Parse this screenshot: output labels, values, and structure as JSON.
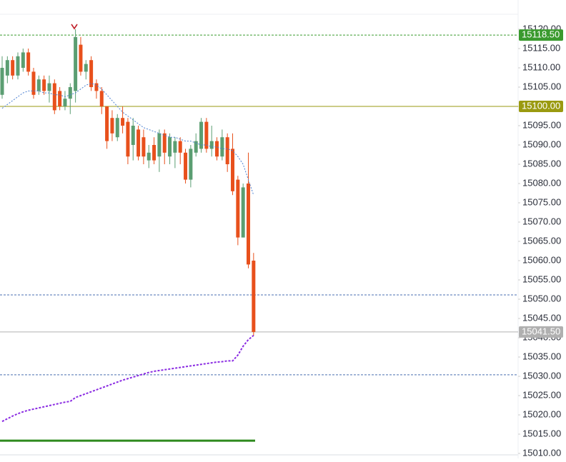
{
  "chart_data": {
    "type": "candlestick",
    "up_color": "#5b9e72",
    "down_color": "#e8501c",
    "open": [
      15103,
      15108,
      15112,
      15108,
      15110,
      15114,
      15109,
      15104,
      15107,
      15104,
      15106,
      15104,
      15100,
      15102,
      15104,
      15116,
      15109,
      15112,
      15106,
      15104,
      15100,
      15097,
      15092,
      15097,
      15096,
      15090,
      15094,
      15092,
      15086,
      15090,
      15087,
      15093,
      15087,
      15088,
      15091,
      15088,
      15081,
      15088,
      15089,
      15096,
      15089,
      15091,
      15087,
      15092,
      15089,
      15081,
      15066,
      15080,
      15060
    ],
    "high": [
      15113,
      15113,
      15113,
      15114,
      15115,
      15115,
      15110,
      15108,
      15108,
      15108,
      15107,
      15105,
      15104,
      15106,
      15120,
      15118,
      15112,
      15113,
      15107,
      15105,
      15100,
      15099,
      15098,
      15100,
      15097,
      15097,
      15095,
      15094,
      15090,
      15092,
      15094,
      15094,
      15093,
      15092,
      15092,
      15089,
      15090,
      15093,
      15097,
      15097,
      15095,
      15092,
      15094,
      15093,
      15093,
      15082,
      15080,
      15088,
      15062
    ],
    "low": [
      15102,
      15106,
      15107,
      15107,
      15109,
      15108,
      15102,
      15103,
      15103,
      15101,
      15098,
      15099,
      15099,
      15098,
      15101,
      15108,
      15107,
      15104,
      15102,
      15098,
      15089,
      15091,
      15091,
      15093,
      15085,
      15086,
      15086,
      15085,
      15084,
      15085,
      15083,
      15085,
      15085,
      15084,
      15085,
      15080,
      15079,
      15087,
      15088,
      15088,
      15087,
      15086,
      15086,
      15083,
      15077,
      15064,
      15066,
      15058,
      15040.5
    ],
    "close": [
      15110,
      15112,
      15108,
      15113,
      15114,
      15109,
      15103,
      15107,
      15104,
      15106,
      15099,
      15100,
      15102,
      15105,
      15118,
      15109,
      15111,
      15105,
      15104,
      15100,
      15091,
      15093,
      15097,
      15095,
      15087,
      15095,
      15087,
      15087,
      15088,
      15086,
      15093,
      15088,
      15092,
      15091,
      15088,
      15081,
      15089,
      15091,
      15096,
      15089,
      15091,
      15087,
      15092,
      15085,
      15078,
      15066,
      15079,
      15059,
      15041.5
    ],
    "series": [
      {
        "color": "#4a7fd0",
        "style": "dotted",
        "values": [
          15099.5,
          15100.5,
          15101.5,
          15102.5,
          15103.5,
          15104,
          15104,
          15104,
          15103.5,
          15103.5,
          15103,
          15103,
          15102.5,
          15103,
          15103.5,
          15104.5,
          15105.5,
          15106,
          15105.5,
          15104.5,
          15103,
          15101.5,
          15100,
          15098.5,
          15097.5,
          15096.5,
          15095.5,
          15094.5,
          15094,
          15093.5,
          15093,
          15092.5,
          15092,
          15092,
          15091.5,
          15091,
          15091,
          15090.5,
          15090,
          15090,
          15089.5,
          15089.5,
          15089,
          15089,
          15088.5,
          15087,
          15085,
          15081,
          15077
        ]
      },
      {
        "color": "#8a2be2",
        "style": "dashed",
        "values": [
          15018.3,
          15019,
          15019.7,
          15020.3,
          15020.8,
          15021.2,
          15021.5,
          15021.8,
          15022.1,
          15022.4,
          15022.7,
          15023,
          15023.3,
          15023.5,
          15024.5,
          15025,
          15025.5,
          15026,
          15026.5,
          15027,
          15027.5,
          15028,
          15028.5,
          15029,
          15029.4,
          15029.8,
          15030.2,
          15030.6,
          15031,
          15031.3,
          15031.5,
          15031.7,
          15031.9,
          15032.1,
          15032.3,
          15032.5,
          15032.7,
          15032.9,
          15033.1,
          15033.3,
          15033.5,
          15033.7,
          15033.8,
          15034,
          15034,
          15035.5,
          15037.8,
          15039.5,
          15040.6
        ]
      }
    ],
    "price_labels": [
      {
        "value": 15118.5,
        "label": "15118.50",
        "color": "#3a9a2e",
        "style": "dashed"
      },
      {
        "value": 15100,
        "label": "15100.00",
        "color": "#9a9a10",
        "style": "solid"
      },
      {
        "value": 15041.5,
        "label": "15041.50",
        "color": "#b0b0b0",
        "style": "solid"
      }
    ],
    "lines": [
      {
        "value": 15051.1,
        "color": "#4a6fb0",
        "style": "dashed"
      },
      {
        "value": 15030.4,
        "color": "#4a6fb0",
        "style": "dashed"
      },
      {
        "value": 15013.3,
        "color": "#2e8a1e",
        "style": "thick"
      }
    ],
    "ylim": [
      15010,
      15120
    ],
    "yticks": [
      {
        "value": 15010,
        "label": "15010.00"
      },
      {
        "value": 15015,
        "label": "15015.00"
      },
      {
        "value": 15020,
        "label": "15020.00"
      },
      {
        "value": 15025,
        "label": "15025.00"
      },
      {
        "value": 15030,
        "label": "15030.00"
      },
      {
        "value": 15035,
        "label": "15035.00"
      },
      {
        "value": 15040,
        "label": "15040.00"
      },
      {
        "value": 15045,
        "label": "15045.00"
      },
      {
        "value": 15050,
        "label": "15050.00"
      },
      {
        "value": 15055,
        "label": "15055.00"
      },
      {
        "value": 15060,
        "label": "15060.00"
      },
      {
        "value": 15065,
        "label": "15065.00"
      },
      {
        "value": 15070,
        "label": "15070.00"
      },
      {
        "value": 15075,
        "label": "15075.00"
      },
      {
        "value": 15080,
        "label": "15080.00"
      },
      {
        "value": 15085,
        "label": "15085.00"
      },
      {
        "value": 15090,
        "label": "15090.00"
      },
      {
        "value": 15095,
        "label": "15095.00"
      },
      {
        "value": 15100,
        "label": "15100.00"
      },
      {
        "value": 15105,
        "label": "15105.00"
      },
      {
        "value": 15110,
        "label": "15110.00"
      },
      {
        "value": 15115,
        "label": "15115.00"
      },
      {
        "value": 15120,
        "label": "15120.00"
      }
    ]
  }
}
